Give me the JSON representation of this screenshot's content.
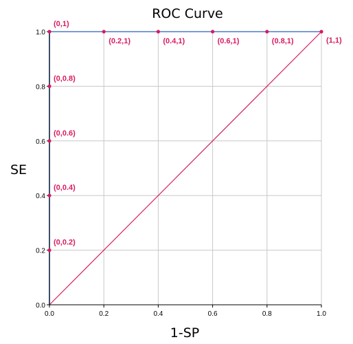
{
  "chart_data": {
    "type": "line",
    "title": "ROC Curve",
    "xlabel": "1-SP",
    "ylabel": "SE",
    "xlim": [
      0,
      1
    ],
    "ylim": [
      0,
      1
    ],
    "xticks": [
      "0.0",
      "0.2",
      "0.4",
      "0.6",
      "0.8",
      "1.0"
    ],
    "yticks": [
      "0.0",
      "0.2",
      "0.4",
      "0.6",
      "0.8",
      "1.0"
    ],
    "grid": true,
    "series": [
      {
        "name": "",
        "color": "#7b9bd6",
        "x": [
          0,
          0,
          0,
          0,
          0,
          0,
          0.2,
          0.4,
          0.6,
          0.8,
          1
        ],
        "y": [
          0,
          0.2,
          0.4,
          0.6,
          0.8,
          1,
          1,
          1,
          1,
          1,
          1
        ]
      },
      {
        "name": "",
        "color": "#d81b60",
        "x": [
          0,
          1
        ],
        "y": [
          0,
          1
        ]
      }
    ],
    "points": [
      {
        "x": 0,
        "y": 1,
        "label": "(0,1)"
      },
      {
        "x": 0,
        "y": 0.8,
        "label": "(0,0.8)"
      },
      {
        "x": 0,
        "y": 0.6,
        "label": "(0,0.6)"
      },
      {
        "x": 0,
        "y": 0.4,
        "label": "(0,0.4)"
      },
      {
        "x": 0,
        "y": 0.2,
        "label": "(0,0.2)"
      },
      {
        "x": 0.2,
        "y": 1,
        "label": "(0.2,1)"
      },
      {
        "x": 0.4,
        "y": 1,
        "label": "(0.4,1)"
      },
      {
        "x": 0.6,
        "y": 1,
        "label": "(0.6,1)"
      },
      {
        "x": 0.8,
        "y": 1,
        "label": "(0.8,1)"
      },
      {
        "x": 1,
        "y": 1,
        "label": "(1,1)"
      }
    ],
    "point_color": "#d81b60",
    "grid_color": "#c8c8c8"
  }
}
